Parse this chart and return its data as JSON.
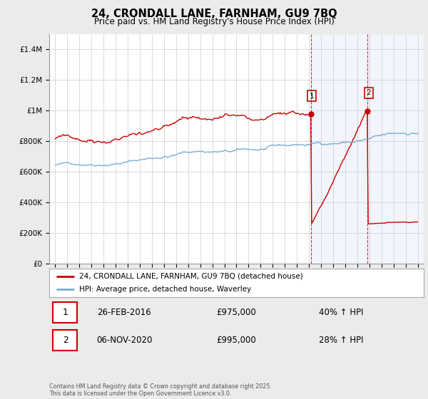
{
  "title": "24, CRONDALL LANE, FARNHAM, GU9 7BQ",
  "subtitle": "Price paid vs. HM Land Registry's House Price Index (HPI)",
  "line1_label": "24, CRONDALL LANE, FARNHAM, GU9 7BQ (detached house)",
  "line2_label": "HPI: Average price, detached house, Waverley",
  "line1_color": "#cc0000",
  "line2_color": "#7aadd0",
  "vline_color": "#cc0000",
  "event1_date_label": "26-FEB-2016",
  "event1_price": "£975,000",
  "event1_hpi": "40% ↑ HPI",
  "event2_date_label": "06-NOV-2020",
  "event2_price": "£995,000",
  "event2_hpi": "28% ↑ HPI",
  "event1_x": 2016.15,
  "event2_x": 2020.85,
  "event1_y": 975000,
  "event2_y": 995000,
  "ylim": [
    0,
    1500000
  ],
  "xlim": [
    1994.5,
    2025.5
  ],
  "yticks": [
    0,
    200000,
    400000,
    600000,
    800000,
    1000000,
    1200000,
    1400000
  ],
  "footer": "Contains HM Land Registry data © Crown copyright and database right 2025.\nThis data is licensed under the Open Government Licence v3.0.",
  "background_color": "#ebebeb",
  "plot_background": "#ffffff",
  "grid_color": "#cccccc",
  "shade_color": "#ccd9f0"
}
